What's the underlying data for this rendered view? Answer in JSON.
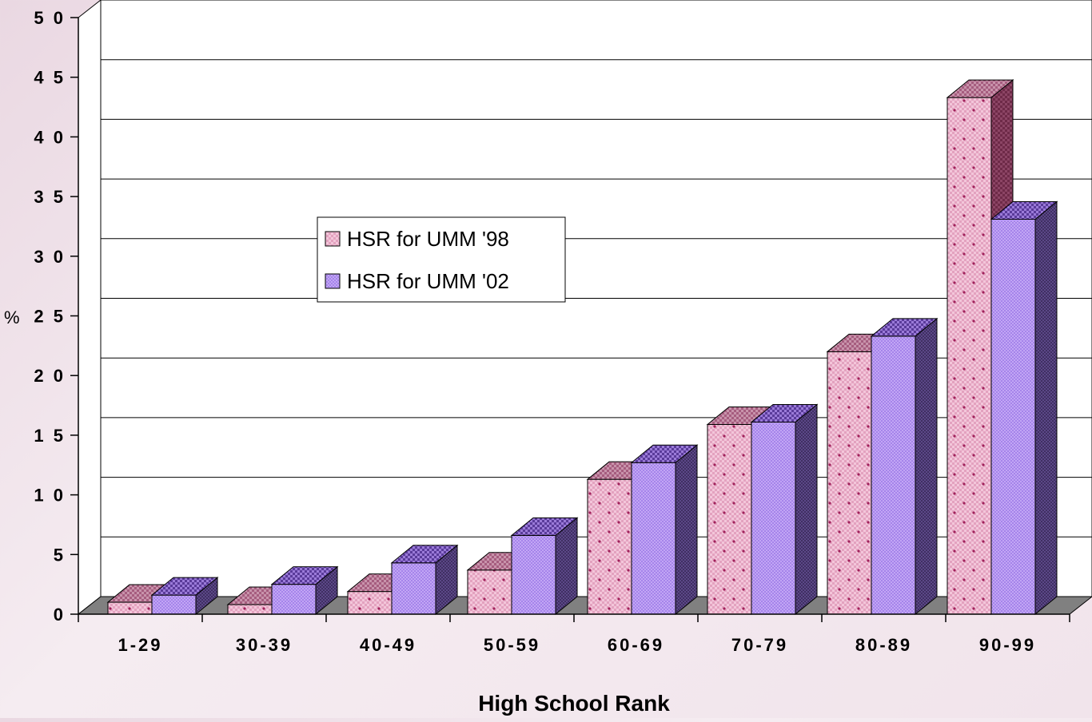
{
  "chart_data": {
    "type": "bar",
    "categories": [
      "1-29",
      "30-39",
      "40-49",
      "50-59",
      "60-69",
      "70-79",
      "80-89",
      "90-99"
    ],
    "series": [
      {
        "name": "HSR for UMM '98",
        "values": [
          1.0,
          0.8,
          1.9,
          3.7,
          11.3,
          15.9,
          22.0,
          43.3
        ]
      },
      {
        "name": "HSR for UMM '02",
        "values": [
          1.6,
          2.5,
          4.3,
          6.6,
          12.7,
          16.1,
          23.3,
          33.1
        ]
      }
    ],
    "title": "",
    "xlabel": "High School Rank",
    "ylabel": "%",
    "ylim": [
      0,
      50
    ],
    "yticks": [
      "0",
      "5",
      "1 0",
      "1 5",
      "2 0",
      "2 5",
      "3 0",
      "3 5",
      "4 0",
      "4 5",
      "5 0"
    ],
    "ytick_values": [
      0,
      5,
      10,
      15,
      20,
      25,
      30,
      35,
      40,
      45,
      50
    ],
    "grid": true,
    "legend_position": "center-left",
    "colors": {
      "series_98_front": "#f0bcd4",
      "series_98_side": "#7a3050",
      "series_98_top": "#b06a88",
      "series_98_dot": "#a0205a",
      "series_02_front": "#b99af2",
      "series_02_side": "#4b3a70",
      "series_02_top": "#6a4aa8",
      "gridline": "#000000",
      "floor": "#808080"
    }
  }
}
